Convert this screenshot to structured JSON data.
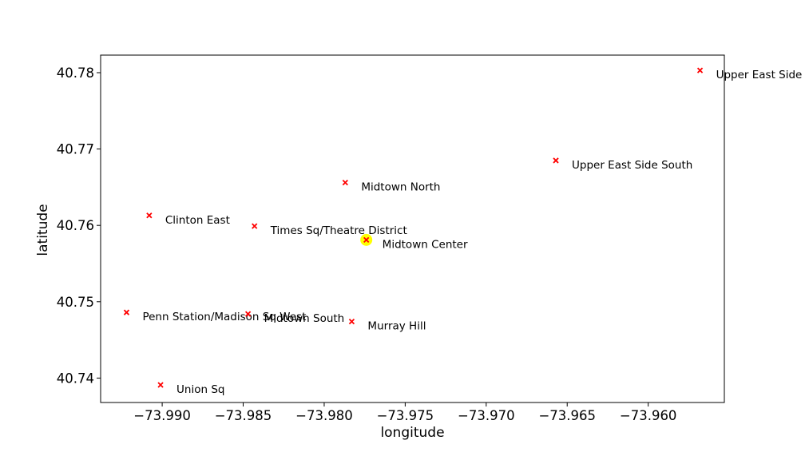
{
  "chart_data": {
    "type": "scatter",
    "title": "",
    "xlabel": "longitude",
    "ylabel": "latitude",
    "xlim": [
      -73.9938,
      -73.9553
    ],
    "ylim": [
      40.7823,
      40.7368
    ],
    "y_inverted": true,
    "grid": false,
    "marker": "x",
    "marker_color": "#ff0000",
    "highlight_color": "#ffff00",
    "x_ticks": [
      -73.99,
      -73.985,
      -73.98,
      -73.975,
      -73.97,
      -73.965,
      -73.96
    ],
    "x_tick_labels": [
      "−73.990",
      "−73.985",
      "−73.980",
      "−73.975",
      "−73.970",
      "−73.965",
      "−73.960"
    ],
    "y_ticks": [
      40.74,
      40.75,
      40.76,
      40.77,
      40.78
    ],
    "y_tick_labels": [
      "40.74",
      "40.75",
      "40.76",
      "40.77",
      "40.78"
    ],
    "points": [
      {
        "label": "Union Sq",
        "x": -73.9901,
        "y": 40.7391
      },
      {
        "label": "Penn Station/Madison Sq West",
        "x": -73.9922,
        "y": 40.7486
      },
      {
        "label": "Midtown South",
        "x": -73.9847,
        "y": 40.7484
      },
      {
        "label": "Murray Hill",
        "x": -73.9783,
        "y": 40.7474
      },
      {
        "label": "Midtown Center",
        "x": -73.9774,
        "y": 40.7581,
        "highlight": true
      },
      {
        "label": "Times Sq/Theatre District",
        "x": -73.9843,
        "y": 40.7599
      },
      {
        "label": "Clinton East",
        "x": -73.9908,
        "y": 40.7613
      },
      {
        "label": "Midtown North",
        "x": -73.9787,
        "y": 40.7656
      },
      {
        "label": "Upper East Side South",
        "x": -73.9657,
        "y": 40.7685
      },
      {
        "label": "Upper East Side North",
        "x": -73.9568,
        "y": 40.7803
      }
    ]
  }
}
